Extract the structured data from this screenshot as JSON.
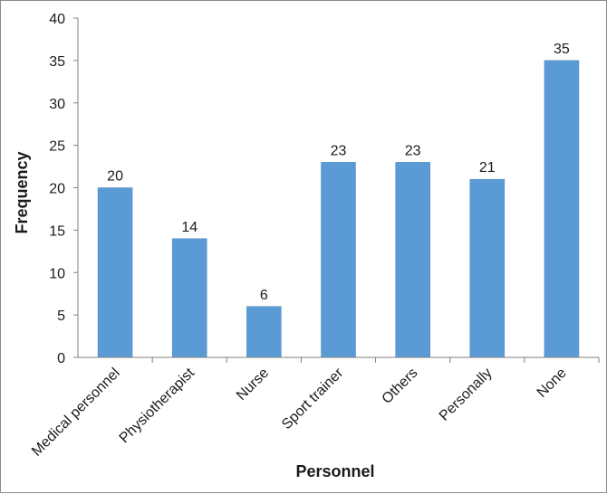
{
  "chart_data": {
    "type": "bar",
    "title": "",
    "xlabel": "Personnel",
    "ylabel": "Frequency",
    "categories": [
      "Medical personnel",
      "Physiotherapist",
      "Nurse",
      "Sport trainer",
      "Others",
      "Personally",
      "None"
    ],
    "values": [
      20,
      14,
      6,
      23,
      23,
      21,
      35
    ],
    "ylim": [
      0,
      40
    ],
    "yticks": [
      0,
      5,
      10,
      15,
      20,
      25,
      30,
      35,
      40
    ],
    "grid": false,
    "legend": "none",
    "bar_color": "#5b9bd5",
    "data_labels": true
  }
}
